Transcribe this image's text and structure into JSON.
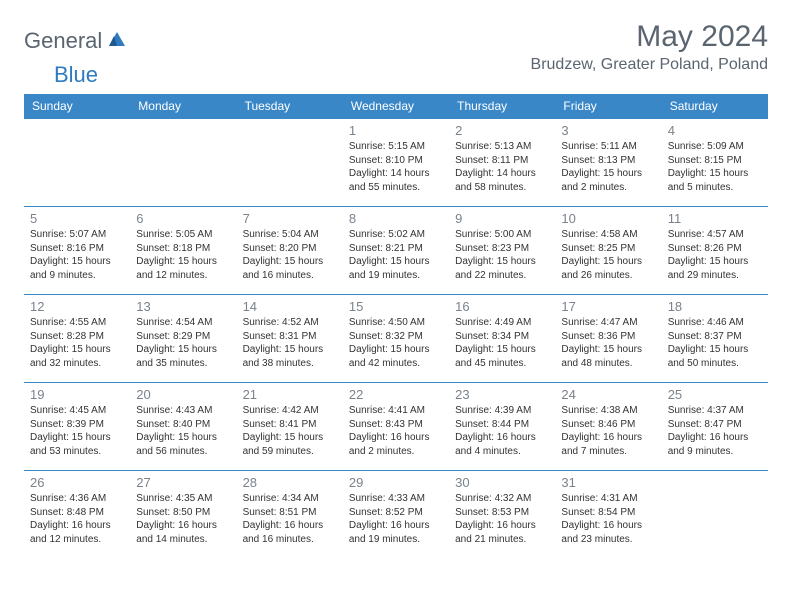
{
  "logo": {
    "text_general": "General",
    "text_blue": "Blue",
    "accent_color": "#2f7bbf",
    "text_color": "#5a6570"
  },
  "title": "May 2024",
  "location": "Brudzew, Greater Poland, Poland",
  "colors": {
    "header_bg": "#3a87c8",
    "header_text": "#ffffff",
    "cell_border": "#3a87c8",
    "daynum_color": "#7a838c",
    "info_color": "#333333",
    "background": "#ffffff"
  },
  "day_headers": [
    "Sunday",
    "Monday",
    "Tuesday",
    "Wednesday",
    "Thursday",
    "Friday",
    "Saturday"
  ],
  "weeks": [
    [
      null,
      null,
      null,
      {
        "n": "1",
        "sr": "Sunrise: 5:15 AM",
        "ss": "Sunset: 8:10 PM",
        "dl": "Daylight: 14 hours and 55 minutes."
      },
      {
        "n": "2",
        "sr": "Sunrise: 5:13 AM",
        "ss": "Sunset: 8:11 PM",
        "dl": "Daylight: 14 hours and 58 minutes."
      },
      {
        "n": "3",
        "sr": "Sunrise: 5:11 AM",
        "ss": "Sunset: 8:13 PM",
        "dl": "Daylight: 15 hours and 2 minutes."
      },
      {
        "n": "4",
        "sr": "Sunrise: 5:09 AM",
        "ss": "Sunset: 8:15 PM",
        "dl": "Daylight: 15 hours and 5 minutes."
      }
    ],
    [
      {
        "n": "5",
        "sr": "Sunrise: 5:07 AM",
        "ss": "Sunset: 8:16 PM",
        "dl": "Daylight: 15 hours and 9 minutes."
      },
      {
        "n": "6",
        "sr": "Sunrise: 5:05 AM",
        "ss": "Sunset: 8:18 PM",
        "dl": "Daylight: 15 hours and 12 minutes."
      },
      {
        "n": "7",
        "sr": "Sunrise: 5:04 AM",
        "ss": "Sunset: 8:20 PM",
        "dl": "Daylight: 15 hours and 16 minutes."
      },
      {
        "n": "8",
        "sr": "Sunrise: 5:02 AM",
        "ss": "Sunset: 8:21 PM",
        "dl": "Daylight: 15 hours and 19 minutes."
      },
      {
        "n": "9",
        "sr": "Sunrise: 5:00 AM",
        "ss": "Sunset: 8:23 PM",
        "dl": "Daylight: 15 hours and 22 minutes."
      },
      {
        "n": "10",
        "sr": "Sunrise: 4:58 AM",
        "ss": "Sunset: 8:25 PM",
        "dl": "Daylight: 15 hours and 26 minutes."
      },
      {
        "n": "11",
        "sr": "Sunrise: 4:57 AM",
        "ss": "Sunset: 8:26 PM",
        "dl": "Daylight: 15 hours and 29 minutes."
      }
    ],
    [
      {
        "n": "12",
        "sr": "Sunrise: 4:55 AM",
        "ss": "Sunset: 8:28 PM",
        "dl": "Daylight: 15 hours and 32 minutes."
      },
      {
        "n": "13",
        "sr": "Sunrise: 4:54 AM",
        "ss": "Sunset: 8:29 PM",
        "dl": "Daylight: 15 hours and 35 minutes."
      },
      {
        "n": "14",
        "sr": "Sunrise: 4:52 AM",
        "ss": "Sunset: 8:31 PM",
        "dl": "Daylight: 15 hours and 38 minutes."
      },
      {
        "n": "15",
        "sr": "Sunrise: 4:50 AM",
        "ss": "Sunset: 8:32 PM",
        "dl": "Daylight: 15 hours and 42 minutes."
      },
      {
        "n": "16",
        "sr": "Sunrise: 4:49 AM",
        "ss": "Sunset: 8:34 PM",
        "dl": "Daylight: 15 hours and 45 minutes."
      },
      {
        "n": "17",
        "sr": "Sunrise: 4:47 AM",
        "ss": "Sunset: 8:36 PM",
        "dl": "Daylight: 15 hours and 48 minutes."
      },
      {
        "n": "18",
        "sr": "Sunrise: 4:46 AM",
        "ss": "Sunset: 8:37 PM",
        "dl": "Daylight: 15 hours and 50 minutes."
      }
    ],
    [
      {
        "n": "19",
        "sr": "Sunrise: 4:45 AM",
        "ss": "Sunset: 8:39 PM",
        "dl": "Daylight: 15 hours and 53 minutes."
      },
      {
        "n": "20",
        "sr": "Sunrise: 4:43 AM",
        "ss": "Sunset: 8:40 PM",
        "dl": "Daylight: 15 hours and 56 minutes."
      },
      {
        "n": "21",
        "sr": "Sunrise: 4:42 AM",
        "ss": "Sunset: 8:41 PM",
        "dl": "Daylight: 15 hours and 59 minutes."
      },
      {
        "n": "22",
        "sr": "Sunrise: 4:41 AM",
        "ss": "Sunset: 8:43 PM",
        "dl": "Daylight: 16 hours and 2 minutes."
      },
      {
        "n": "23",
        "sr": "Sunrise: 4:39 AM",
        "ss": "Sunset: 8:44 PM",
        "dl": "Daylight: 16 hours and 4 minutes."
      },
      {
        "n": "24",
        "sr": "Sunrise: 4:38 AM",
        "ss": "Sunset: 8:46 PM",
        "dl": "Daylight: 16 hours and 7 minutes."
      },
      {
        "n": "25",
        "sr": "Sunrise: 4:37 AM",
        "ss": "Sunset: 8:47 PM",
        "dl": "Daylight: 16 hours and 9 minutes."
      }
    ],
    [
      {
        "n": "26",
        "sr": "Sunrise: 4:36 AM",
        "ss": "Sunset: 8:48 PM",
        "dl": "Daylight: 16 hours and 12 minutes."
      },
      {
        "n": "27",
        "sr": "Sunrise: 4:35 AM",
        "ss": "Sunset: 8:50 PM",
        "dl": "Daylight: 16 hours and 14 minutes."
      },
      {
        "n": "28",
        "sr": "Sunrise: 4:34 AM",
        "ss": "Sunset: 8:51 PM",
        "dl": "Daylight: 16 hours and 16 minutes."
      },
      {
        "n": "29",
        "sr": "Sunrise: 4:33 AM",
        "ss": "Sunset: 8:52 PM",
        "dl": "Daylight: 16 hours and 19 minutes."
      },
      {
        "n": "30",
        "sr": "Sunrise: 4:32 AM",
        "ss": "Sunset: 8:53 PM",
        "dl": "Daylight: 16 hours and 21 minutes."
      },
      {
        "n": "31",
        "sr": "Sunrise: 4:31 AM",
        "ss": "Sunset: 8:54 PM",
        "dl": "Daylight: 16 hours and 23 minutes."
      },
      null
    ]
  ]
}
